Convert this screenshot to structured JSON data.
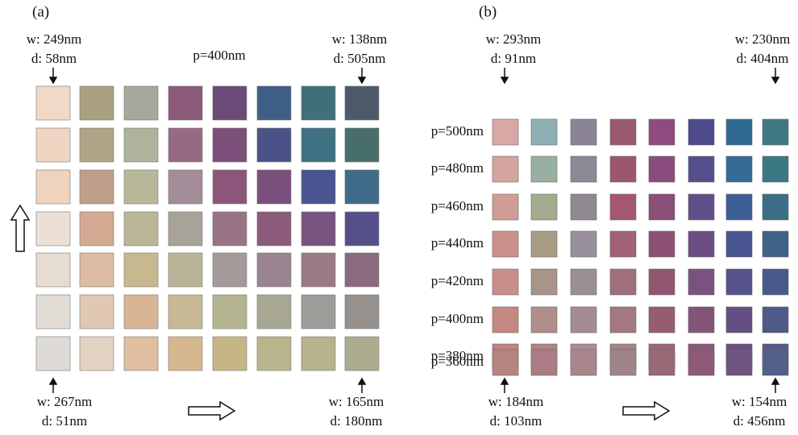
{
  "panel_a": {
    "label": "(a)",
    "period": "p=400nm",
    "top_left": {
      "w": "w: 249nm",
      "d": "d: 58nm"
    },
    "top_right": {
      "w": "w: 138nm",
      "d": "d: 505nm"
    },
    "bottom_left": {
      "w": "w: 267nm",
      "d": "d: 51nm"
    },
    "bottom_right": {
      "w": "w: 165nm",
      "d": "d: 180nm"
    }
  },
  "panel_b": {
    "label": "(b)",
    "rows": [
      "p=500nm",
      "p=480nm",
      "p=460nm",
      "p=440nm",
      "p=420nm",
      "p=400nm",
      "p=380nm",
      "p=360nm"
    ],
    "top_left": {
      "w": "w: 293nm",
      "d": "d: 91nm"
    },
    "top_right": {
      "w": "w: 230nm",
      "d": "d: 404nm"
    },
    "bottom_left": {
      "w": "w: 184nm",
      "d": "d: 103nm"
    },
    "bottom_right": {
      "w": "w: 154nm",
      "d": "d: 456nm"
    }
  }
}
